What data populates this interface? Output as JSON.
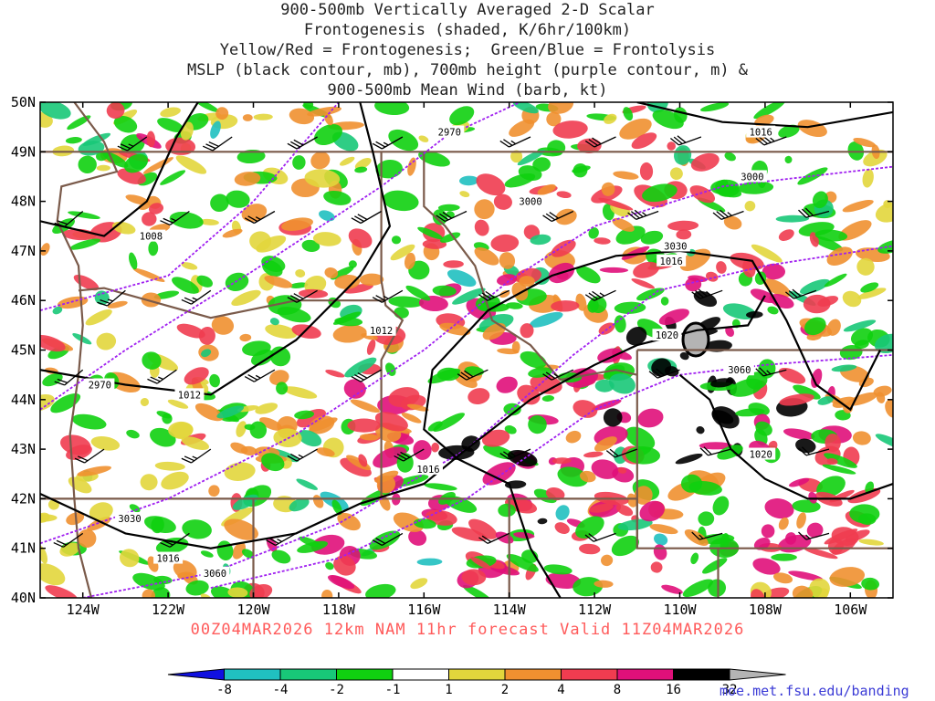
{
  "title_lines": [
    "900-500mb Vertically Averaged 2-D Scalar",
    "Frontogenesis (shaded, K/6hr/100km)",
    "Yellow/Red = Frontogenesis;  Green/Blue = Frontolysis",
    "MSLP (black contour, mb), 700mb height (purple contour, m) &",
    "900-500mb Mean Wind (barb, kt)"
  ],
  "map": {
    "lon_range": [
      -125,
      -105
    ],
    "lat_range": [
      40,
      50
    ],
    "lon_ticks": [
      {
        "lon": -124,
        "label": "124W"
      },
      {
        "lon": -122,
        "label": "122W"
      },
      {
        "lon": -120,
        "label": "120W"
      },
      {
        "lon": -118,
        "label": "118W"
      },
      {
        "lon": -116,
        "label": "116W"
      },
      {
        "lon": -114,
        "label": "114W"
      },
      {
        "lon": -112,
        "label": "112W"
      },
      {
        "lon": -110,
        "label": "110W"
      },
      {
        "lon": -108,
        "label": "108W"
      },
      {
        "lon": -106,
        "label": "106W"
      }
    ],
    "lat_ticks": [
      {
        "lat": 50,
        "label": "50N"
      },
      {
        "lat": 49,
        "label": "49N"
      },
      {
        "lat": 48,
        "label": "48N"
      },
      {
        "lat": 47,
        "label": "47N"
      },
      {
        "lat": 46,
        "label": "46N"
      },
      {
        "lat": 45,
        "label": "45N"
      },
      {
        "lat": 44,
        "label": "44N"
      },
      {
        "lat": 43,
        "label": "43N"
      },
      {
        "lat": 42,
        "label": "42N"
      },
      {
        "lat": 41,
        "label": "41N"
      },
      {
        "lat": 40,
        "label": "40N"
      }
    ],
    "colors": {
      "mslp": "#000000",
      "height": "#a020f0",
      "borders": "#7a5a4a",
      "barb": "#000000"
    },
    "mslp_labels": [
      {
        "lon": -117.0,
        "lat": 45.4,
        "label": "1012"
      },
      {
        "lon": -121.5,
        "lat": 44.1,
        "label": "1012"
      },
      {
        "lon": -115.9,
        "lat": 42.6,
        "label": "1016"
      },
      {
        "lon": -122.0,
        "lat": 40.8,
        "label": "1016"
      },
      {
        "lon": -122.4,
        "lat": 47.3,
        "label": "1008"
      },
      {
        "lon": -108.1,
        "lat": 49.4,
        "label": "1016"
      },
      {
        "lon": -110.2,
        "lat": 46.8,
        "label": "1016"
      },
      {
        "lon": -110.3,
        "lat": 45.3,
        "label": "1020"
      },
      {
        "lon": -108.1,
        "lat": 42.9,
        "label": "1020"
      }
    ],
    "height_labels": [
      {
        "lon": -115.4,
        "lat": 49.4,
        "label": "2970"
      },
      {
        "lon": -123.6,
        "lat": 44.3,
        "label": "2970"
      },
      {
        "lon": -113.5,
        "lat": 48.0,
        "label": "3000"
      },
      {
        "lon": -108.3,
        "lat": 48.5,
        "label": "3000"
      },
      {
        "lon": -110.1,
        "lat": 47.1,
        "label": "3030"
      },
      {
        "lon": -122.9,
        "lat": 41.6,
        "label": "3030"
      },
      {
        "lon": -108.6,
        "lat": 44.6,
        "label": "3060"
      },
      {
        "lon": -120.9,
        "lat": 40.5,
        "label": "3060"
      }
    ],
    "wind_barbs": [
      {
        "lon": -122.5,
        "lat": 49.3,
        "dir": 235,
        "speed": 25
      },
      {
        "lon": -120.5,
        "lat": 49.3,
        "dir": 235,
        "speed": 30
      },
      {
        "lon": -118.5,
        "lat": 49.3,
        "dir": 240,
        "speed": 30
      },
      {
        "lon": -116.5,
        "lat": 49.3,
        "dir": 240,
        "speed": 25
      },
      {
        "lon": -113.5,
        "lat": 49.3,
        "dir": 245,
        "speed": 25
      },
      {
        "lon": -111.5,
        "lat": 49.3,
        "dir": 245,
        "speed": 30
      },
      {
        "lon": -109.5,
        "lat": 49.3,
        "dir": 250,
        "speed": 30
      },
      {
        "lon": -107.5,
        "lat": 49.3,
        "dir": 250,
        "speed": 35
      },
      {
        "lon": -124.0,
        "lat": 47.8,
        "dir": 230,
        "speed": 20
      },
      {
        "lon": -121.5,
        "lat": 47.8,
        "dir": 235,
        "speed": 25
      },
      {
        "lon": -119.5,
        "lat": 47.8,
        "dir": 240,
        "speed": 25
      },
      {
        "lon": -117.0,
        "lat": 47.8,
        "dir": 240,
        "speed": 30
      },
      {
        "lon": -115.0,
        "lat": 47.8,
        "dir": 245,
        "speed": 30
      },
      {
        "lon": -112.5,
        "lat": 47.8,
        "dir": 245,
        "speed": 30
      },
      {
        "lon": -110.5,
        "lat": 47.8,
        "dir": 250,
        "speed": 35
      },
      {
        "lon": -108.5,
        "lat": 47.8,
        "dir": 250,
        "speed": 35
      },
      {
        "lon": -106.5,
        "lat": 47.8,
        "dir": 255,
        "speed": 30
      },
      {
        "lon": -123.0,
        "lat": 46.2,
        "dir": 230,
        "speed": 25
      },
      {
        "lon": -121.0,
        "lat": 46.2,
        "dir": 235,
        "speed": 25
      },
      {
        "lon": -118.5,
        "lat": 46.2,
        "dir": 240,
        "speed": 30
      },
      {
        "lon": -116.5,
        "lat": 46.2,
        "dir": 240,
        "speed": 25
      },
      {
        "lon": -114.0,
        "lat": 46.2,
        "dir": 245,
        "speed": 30
      },
      {
        "lon": -111.5,
        "lat": 46.2,
        "dir": 245,
        "speed": 35
      },
      {
        "lon": -109.0,
        "lat": 46.2,
        "dir": 250,
        "speed": 35
      },
      {
        "lon": -106.8,
        "lat": 46.2,
        "dir": 250,
        "speed": 30
      },
      {
        "lon": -124.0,
        "lat": 44.6,
        "dir": 230,
        "speed": 20
      },
      {
        "lon": -121.8,
        "lat": 44.6,
        "dir": 235,
        "speed": 25
      },
      {
        "lon": -119.5,
        "lat": 44.6,
        "dir": 240,
        "speed": 25
      },
      {
        "lon": -117.0,
        "lat": 44.6,
        "dir": 240,
        "speed": 30
      },
      {
        "lon": -114.5,
        "lat": 44.6,
        "dir": 245,
        "speed": 30
      },
      {
        "lon": -112.5,
        "lat": 44.6,
        "dir": 245,
        "speed": 25
      },
      {
        "lon": -110.0,
        "lat": 44.6,
        "dir": 250,
        "speed": 30
      },
      {
        "lon": -107.5,
        "lat": 44.6,
        "dir": 255,
        "speed": 25
      },
      {
        "lon": -123.5,
        "lat": 43.0,
        "dir": 235,
        "speed": 20
      },
      {
        "lon": -121.0,
        "lat": 43.0,
        "dir": 235,
        "speed": 25
      },
      {
        "lon": -118.5,
        "lat": 43.0,
        "dir": 240,
        "speed": 25
      },
      {
        "lon": -116.0,
        "lat": 43.0,
        "dir": 240,
        "speed": 30
      },
      {
        "lon": -113.5,
        "lat": 43.0,
        "dir": 245,
        "speed": 25
      },
      {
        "lon": -111.0,
        "lat": 43.0,
        "dir": 250,
        "speed": 20
      },
      {
        "lon": -108.8,
        "lat": 43.0,
        "dir": 255,
        "speed": 20
      },
      {
        "lon": -106.5,
        "lat": 43.0,
        "dir": 255,
        "speed": 20
      },
      {
        "lon": -124.0,
        "lat": 41.3,
        "dir": 235,
        "speed": 20
      },
      {
        "lon": -121.5,
        "lat": 41.3,
        "dir": 235,
        "speed": 25
      },
      {
        "lon": -119.0,
        "lat": 41.3,
        "dir": 240,
        "speed": 25
      },
      {
        "lon": -116.5,
        "lat": 41.3,
        "dir": 240,
        "speed": 20
      },
      {
        "lon": -114.0,
        "lat": 41.3,
        "dir": 245,
        "speed": 20
      },
      {
        "lon": -111.5,
        "lat": 41.3,
        "dir": 250,
        "speed": 20
      },
      {
        "lon": -109.0,
        "lat": 41.3,
        "dir": 255,
        "speed": 15
      },
      {
        "lon": -106.5,
        "lat": 41.3,
        "dir": 255,
        "speed": 15
      }
    ]
  },
  "colorbar": {
    "labels": [
      "-8",
      "-4",
      "-2",
      "-1",
      "1",
      "2",
      "4",
      "8",
      "16",
      "32"
    ],
    "colors": [
      "#1010e0",
      "#20c0c0",
      "#18c878",
      "#10d010",
      "#ffffff",
      "#e2d63c",
      "#f09030",
      "#f03c50",
      "#e0107a",
      "#000000",
      "#b4b4b4"
    ]
  },
  "footer": "00Z04MAR2026 12km NAM 11hr forecast Valid 11Z04MAR2026",
  "credit": "moe.met.fsu.edu/banding"
}
